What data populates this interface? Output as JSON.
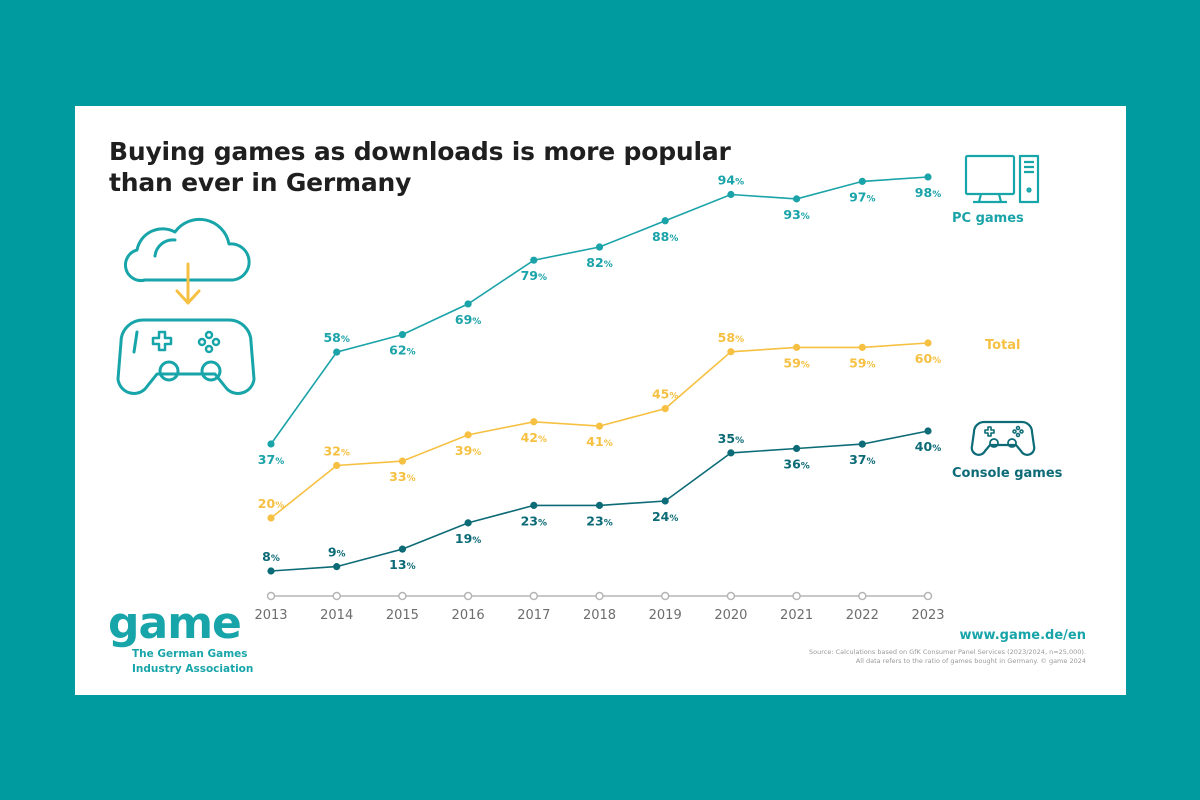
{
  "title": "Buying games as downloads is more popular than ever in Germany",
  "legend": {
    "pc": "PC games",
    "total": "Total",
    "console": "Console games"
  },
  "logo": {
    "word": "game",
    "line1": "The German Games",
    "line2": "Industry Association"
  },
  "url": "www.game.de/en",
  "source": {
    "line1": "Source: Calculations based on GfK Consumer Panel Services (2023/2024, n=25,000).",
    "line2": "All data refers to the ratio of games bought in Germany. © game 2024"
  },
  "colors": {
    "page_bg": "#009b9e",
    "pc": "#1aa3a8",
    "total": "#f6c042",
    "console": "#0c6b76",
    "axis": "#b5b5b5",
    "axis_text": "#6d6d6d"
  },
  "chart_data": {
    "type": "line",
    "title": "Buying games as downloads is more popular than ever in Germany",
    "x": [
      "2013",
      "2014",
      "2015",
      "2016",
      "2017",
      "2018",
      "2019",
      "2020",
      "2021",
      "2022",
      "2023"
    ],
    "unit": "%",
    "series": [
      {
        "name": "PC games",
        "key": "pc",
        "values": [
          37,
          58,
          62,
          69,
          79,
          82,
          88,
          94,
          93,
          97,
          98
        ]
      },
      {
        "name": "Total",
        "key": "total",
        "values": [
          20,
          32,
          33,
          39,
          42,
          41,
          45,
          58,
          59,
          59,
          60
        ]
      },
      {
        "name": "Console games",
        "key": "console",
        "values": [
          8,
          9,
          13,
          19,
          23,
          23,
          24,
          35,
          36,
          37,
          40
        ]
      }
    ]
  }
}
